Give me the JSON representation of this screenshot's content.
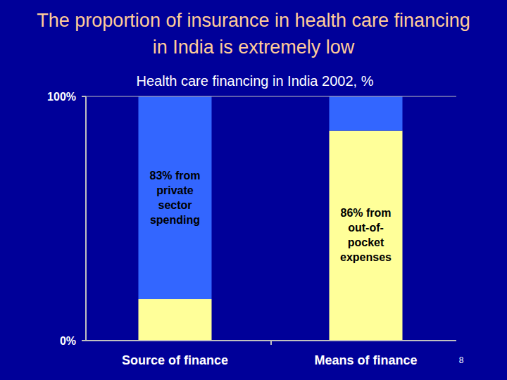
{
  "chart_data": {
    "type": "bar",
    "stacked": true,
    "title": "The proportion of insurance in health care financing in India is extremely low",
    "subtitle": "Health care financing in India 2002, %",
    "categories": [
      "Source of finance",
      "Means of finance"
    ],
    "series": [
      {
        "color": "#ffff99",
        "values": [
          17,
          86
        ],
        "annotations": [
          null,
          [
            "86% from",
            "out-of-",
            "pocket",
            "expenses"
          ]
        ]
      },
      {
        "color": "#3366ff",
        "values": [
          83,
          14
        ],
        "annotations": [
          [
            "83% from",
            "private",
            "sector",
            "spending"
          ],
          null
        ]
      }
    ],
    "ylim": [
      0,
      100
    ],
    "yticks": [
      {
        "value": 0,
        "label": "0%"
      },
      {
        "value": 100,
        "label": "100%"
      }
    ],
    "page_number": "8"
  }
}
